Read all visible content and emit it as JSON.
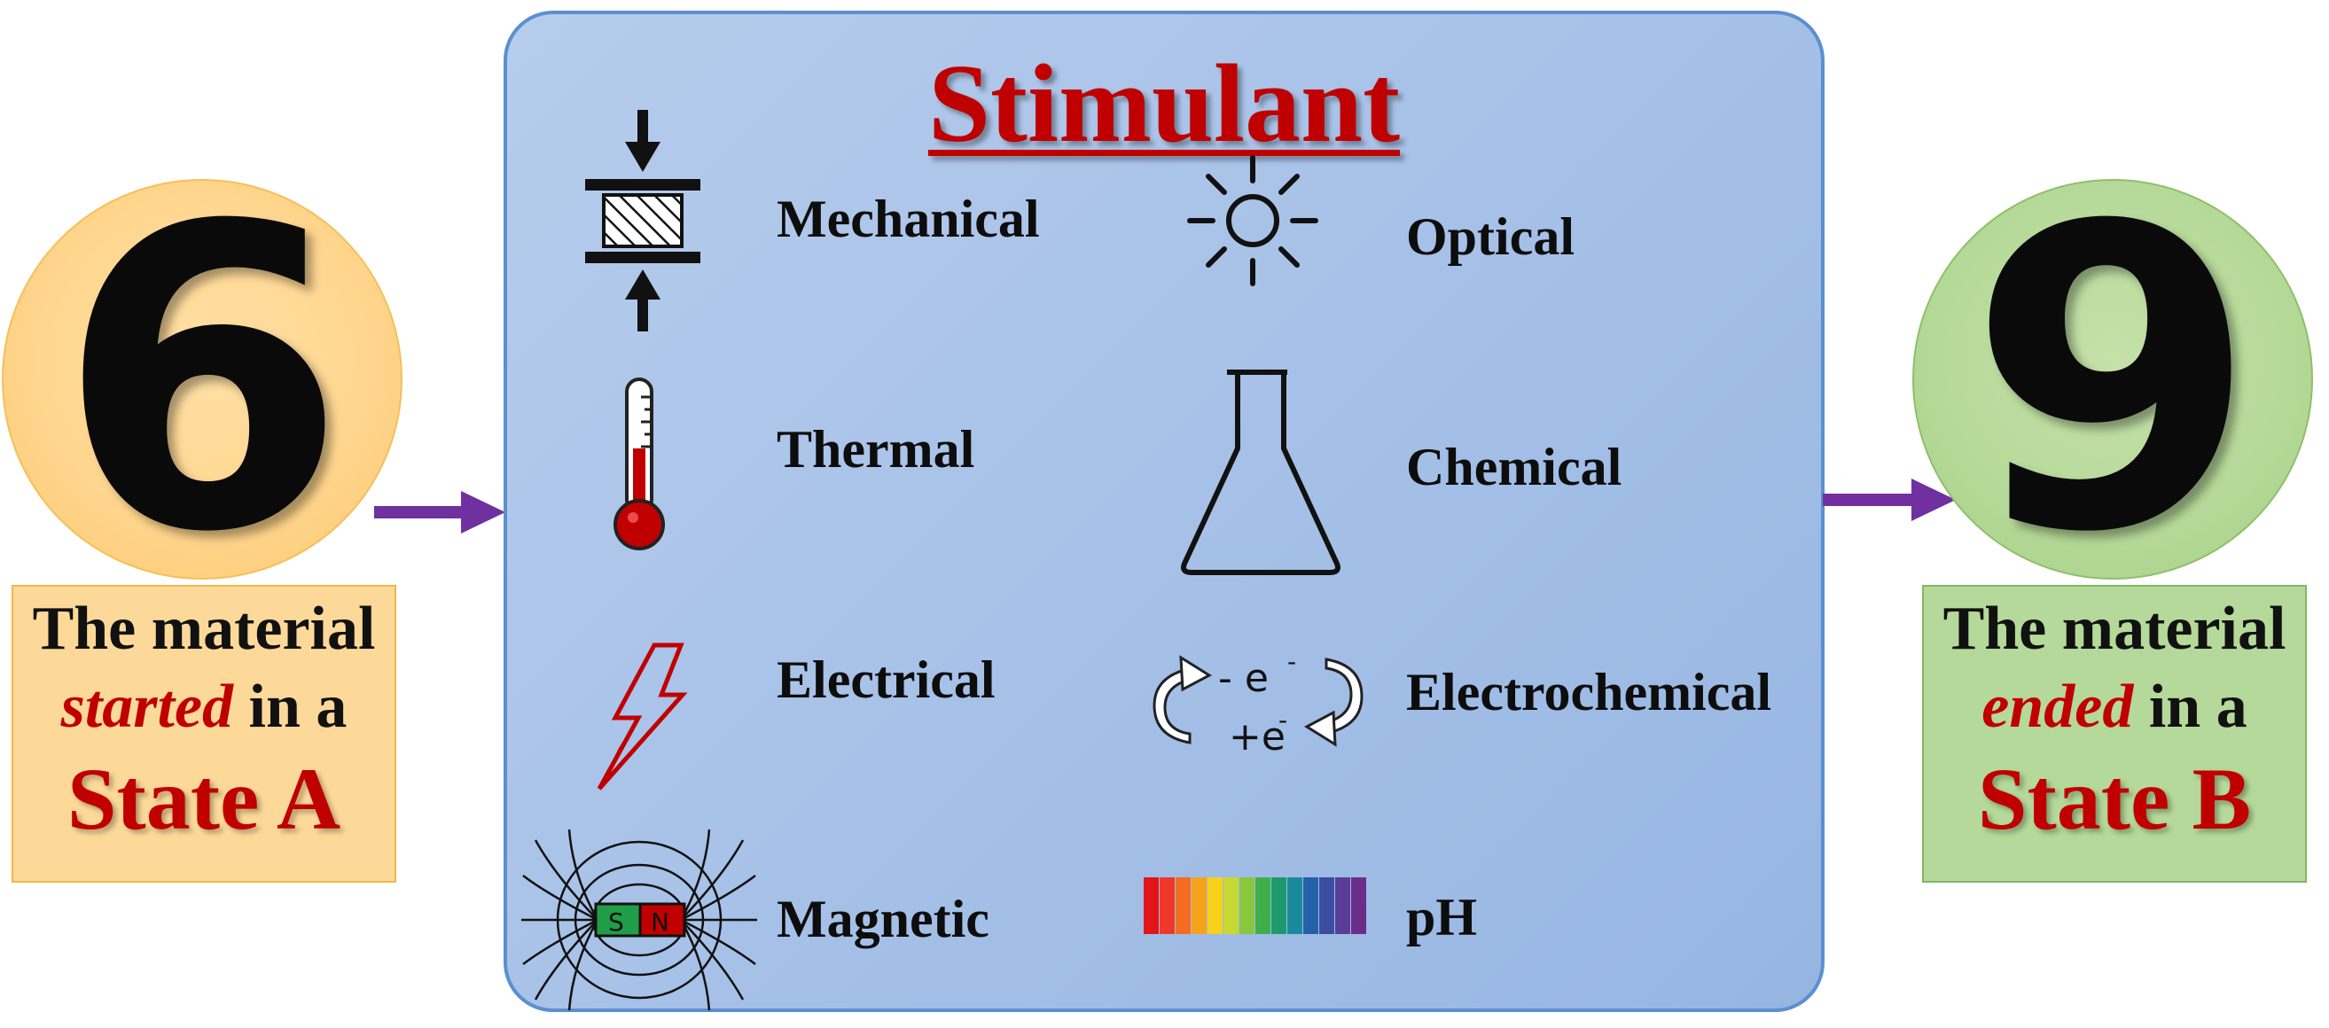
{
  "left_state": {
    "number": "6",
    "line1": "The material",
    "line2_emphasis": "started",
    "line2_rest": " in a",
    "line3": "State A"
  },
  "right_state": {
    "number": "9",
    "line1": "The material",
    "line2_emphasis": "ended",
    "line2_rest": " in a",
    "line3": "State B"
  },
  "panel": {
    "title": "Stimulant",
    "stimuli": [
      {
        "label": "Mechanical",
        "icon": "compression-icon"
      },
      {
        "label": "Optical",
        "icon": "sun-icon"
      },
      {
        "label": "Thermal",
        "icon": "thermometer-icon"
      },
      {
        "label": "Chemical",
        "icon": "flask-icon"
      },
      {
        "label": "Electrical",
        "icon": "lightning-icon"
      },
      {
        "label": "Electrochemical",
        "icon": "electron-cycle-icon"
      },
      {
        "label": "Magnetic",
        "icon": "magnet-field-icon"
      },
      {
        "label": "pH",
        "icon": "ph-spectrum-icon"
      }
    ],
    "electrochem_icon_text": {
      "top": "- e",
      "bottom": "+e",
      "sup": "-"
    },
    "magnet_poles": {
      "south": "S",
      "north": "N"
    }
  },
  "colors": {
    "accent_red": "#c00000",
    "arrow": "#7030a0",
    "panel_fill": "#a8c2e8",
    "left_circle": "#ffd68f",
    "right_circle": "#b5d998"
  }
}
